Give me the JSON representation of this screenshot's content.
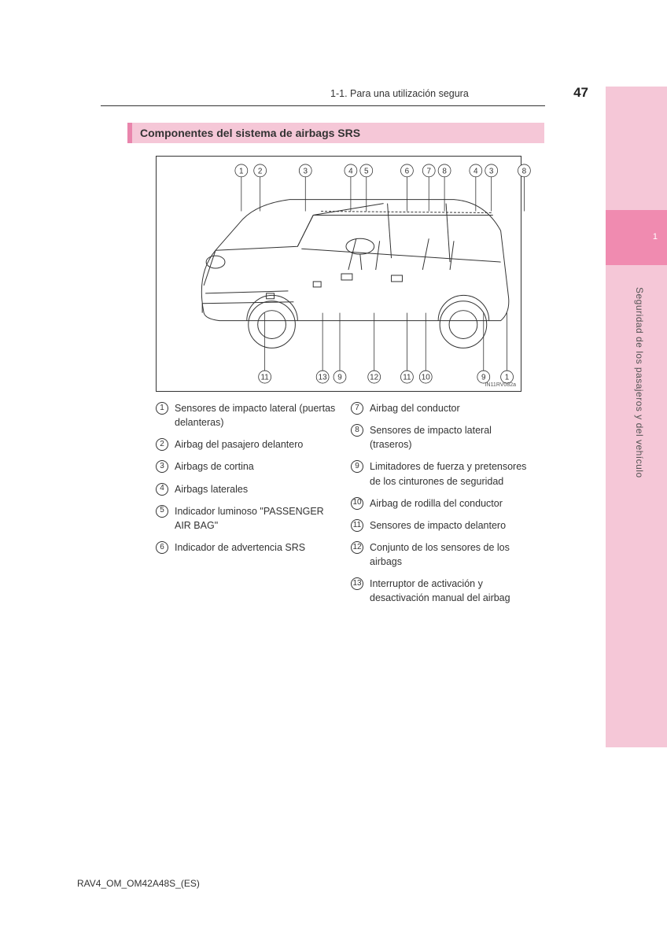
{
  "page": {
    "breadcrumb": "1-1. Para una utilización segura",
    "number": "47",
    "section_title": "Componentes del sistema de airbags SRS",
    "footer_code": "RAV4_OM_OM42A48S_(ES)",
    "diagram_code": "IN11RV082a"
  },
  "sidebar": {
    "chapter_num": "1",
    "vertical_text": "Seguridad de los pasajeros y del vehículo",
    "band_color": "#f5c7d7",
    "tab_color": "#f08bb0"
  },
  "diagram": {
    "top_callouts": [
      "1",
      "2",
      "3",
      "4",
      "5",
      "6",
      "7",
      "8",
      "4",
      "3",
      "8"
    ],
    "top_x": [
      108,
      132,
      190,
      248,
      268,
      320,
      348,
      368,
      408,
      428,
      470
    ],
    "bottom_callouts": [
      "11",
      "13",
      "9",
      "12",
      "11",
      "10",
      "9",
      "1"
    ],
    "bottom_x": [
      138,
      212,
      234,
      278,
      320,
      344,
      418,
      448
    ],
    "stroke": "#333333",
    "fill": "#ffffff"
  },
  "legend_left": [
    {
      "n": "1",
      "t": "Sensores de impacto lateral (puertas delanteras)"
    },
    {
      "n": "2",
      "t": "Airbag del pasajero delantero"
    },
    {
      "n": "3",
      "t": "Airbags de cortina"
    },
    {
      "n": "4",
      "t": "Airbags laterales"
    },
    {
      "n": "5",
      "t": "Indicador luminoso \"PASSENGER AIR BAG\""
    },
    {
      "n": "6",
      "t": "Indicador de advertencia SRS"
    }
  ],
  "legend_right": [
    {
      "n": "7",
      "t": "Airbag del conductor"
    },
    {
      "n": "8",
      "t": "Sensores de impacto lateral (traseros)"
    },
    {
      "n": "9",
      "t": "Limitadores de fuerza y pretensores de los cinturones de seguridad"
    },
    {
      "n": "10",
      "t": "Airbag de rodilla del conductor"
    },
    {
      "n": "11",
      "t": "Sensores de impacto delantero"
    },
    {
      "n": "12",
      "t": "Conjunto de los sensores de los airbags"
    },
    {
      "n": "13",
      "t": "Interruptor de activación y desactivación manual del airbag"
    }
  ]
}
